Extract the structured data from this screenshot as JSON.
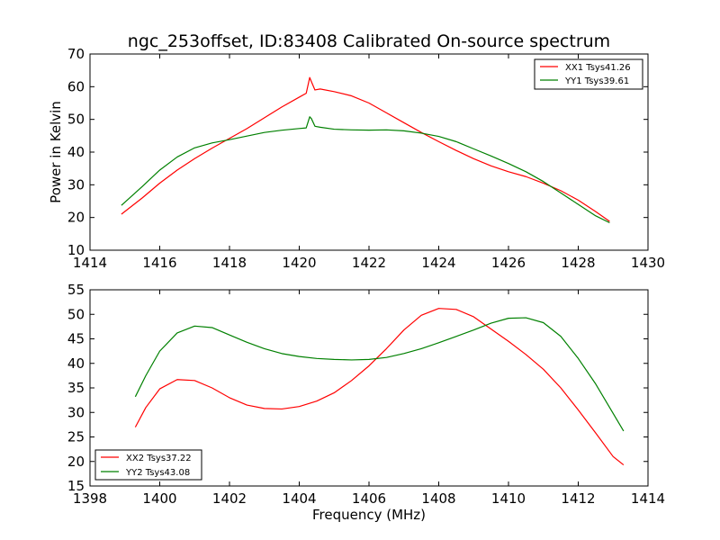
{
  "chart_data": [
    {
      "type": "line",
      "title": "ngc_253offset, ID:83408 Calibrated On-source spectrum",
      "xlabel": "",
      "ylabel": "Power in Kelvin",
      "xlim": [
        1414,
        1430
      ],
      "ylim": [
        10,
        70
      ],
      "xticks": [
        "1414",
        "1416",
        "1418",
        "1420",
        "1422",
        "1424",
        "1426",
        "1428",
        "1430"
      ],
      "yticks": [
        "10",
        "20",
        "30",
        "40",
        "50",
        "60",
        "70"
      ],
      "grid": false,
      "legend_position": "top-right",
      "series": [
        {
          "name": "XX1 Tsys41.26",
          "color": "#ff0000",
          "x": [
            1414.9,
            1415.5,
            1416.0,
            1416.5,
            1417.0,
            1417.5,
            1418.0,
            1418.5,
            1419.0,
            1419.5,
            1420.0,
            1420.2,
            1420.3,
            1420.35,
            1420.45,
            1420.6,
            1421.0,
            1421.5,
            1422.0,
            1422.5,
            1423.0,
            1423.5,
            1424.0,
            1424.5,
            1425.0,
            1425.5,
            1426.0,
            1426.5,
            1427.0,
            1427.5,
            1428.0,
            1428.5,
            1428.9
          ],
          "y": [
            21.0,
            26.0,
            30.5,
            34.5,
            38.0,
            41.2,
            44.2,
            47.2,
            50.5,
            53.8,
            56.8,
            58.0,
            62.8,
            61.5,
            59.0,
            59.3,
            58.5,
            57.2,
            55.0,
            52.0,
            49.0,
            46.0,
            43.2,
            40.5,
            38.0,
            35.8,
            34.0,
            32.5,
            30.5,
            28.2,
            25.3,
            21.8,
            18.8
          ]
        },
        {
          "name": "YY1 Tsys39.61",
          "color": "#008000",
          "x": [
            1414.9,
            1415.5,
            1416.0,
            1416.5,
            1417.0,
            1417.5,
            1418.0,
            1418.5,
            1419.0,
            1419.5,
            1420.0,
            1420.2,
            1420.3,
            1420.35,
            1420.45,
            1420.6,
            1421.0,
            1421.5,
            1422.0,
            1422.5,
            1423.0,
            1423.5,
            1424.0,
            1424.5,
            1425.0,
            1425.5,
            1426.0,
            1426.5,
            1427.0,
            1427.5,
            1428.0,
            1428.5,
            1428.9
          ],
          "y": [
            23.7,
            29.5,
            34.5,
            38.5,
            41.3,
            42.8,
            43.8,
            44.9,
            46.0,
            46.7,
            47.2,
            47.4,
            50.8,
            50.2,
            47.9,
            47.6,
            47.0,
            46.8,
            46.7,
            46.8,
            46.5,
            45.8,
            44.8,
            43.2,
            41.0,
            38.8,
            36.5,
            34.0,
            31.0,
            27.5,
            24.0,
            20.5,
            18.4
          ]
        }
      ]
    },
    {
      "type": "line",
      "title": "",
      "xlabel": "Frequency (MHz)",
      "ylabel": "",
      "xlim": [
        1398,
        1414
      ],
      "ylim": [
        15,
        55
      ],
      "xticks": [
        "1398",
        "1400",
        "1402",
        "1404",
        "1406",
        "1408",
        "1410",
        "1412",
        "1414"
      ],
      "yticks": [
        "15",
        "20",
        "25",
        "30",
        "35",
        "40",
        "45",
        "50",
        "55"
      ],
      "grid": false,
      "legend_position": "bottom-left",
      "series": [
        {
          "name": "XX2 Tsys37.22",
          "color": "#ff0000",
          "x": [
            1399.3,
            1399.6,
            1400.0,
            1400.5,
            1401.0,
            1401.5,
            1402.0,
            1402.5,
            1403.0,
            1403.5,
            1404.0,
            1404.5,
            1405.0,
            1405.5,
            1406.0,
            1406.5,
            1407.0,
            1407.5,
            1408.0,
            1408.5,
            1409.0,
            1409.5,
            1410.0,
            1410.5,
            1411.0,
            1411.5,
            1412.0,
            1412.5,
            1413.0,
            1413.3
          ],
          "y": [
            27.0,
            31.0,
            34.8,
            36.7,
            36.5,
            35.0,
            33.0,
            31.5,
            30.8,
            30.7,
            31.2,
            32.3,
            34.0,
            36.5,
            39.5,
            43.0,
            46.8,
            49.8,
            51.2,
            51.0,
            49.5,
            47.0,
            44.5,
            41.8,
            38.8,
            35.0,
            30.5,
            25.8,
            21.0,
            19.3
          ]
        },
        {
          "name": "YY2 Tsys43.08",
          "color": "#008000",
          "x": [
            1399.3,
            1399.6,
            1400.0,
            1400.5,
            1401.0,
            1401.5,
            1402.0,
            1402.5,
            1403.0,
            1403.5,
            1404.0,
            1404.5,
            1405.0,
            1405.5,
            1406.0,
            1406.5,
            1407.0,
            1407.5,
            1408.0,
            1408.5,
            1409.0,
            1409.5,
            1410.0,
            1410.5,
            1411.0,
            1411.5,
            1412.0,
            1412.5,
            1413.0,
            1413.3
          ],
          "y": [
            33.2,
            37.5,
            42.5,
            46.2,
            47.6,
            47.3,
            45.8,
            44.3,
            43.0,
            42.0,
            41.4,
            41.0,
            40.8,
            40.7,
            40.8,
            41.2,
            42.0,
            43.0,
            44.2,
            45.5,
            46.8,
            48.2,
            49.2,
            49.3,
            48.3,
            45.5,
            41.0,
            35.8,
            29.8,
            26.2
          ]
        }
      ]
    }
  ]
}
